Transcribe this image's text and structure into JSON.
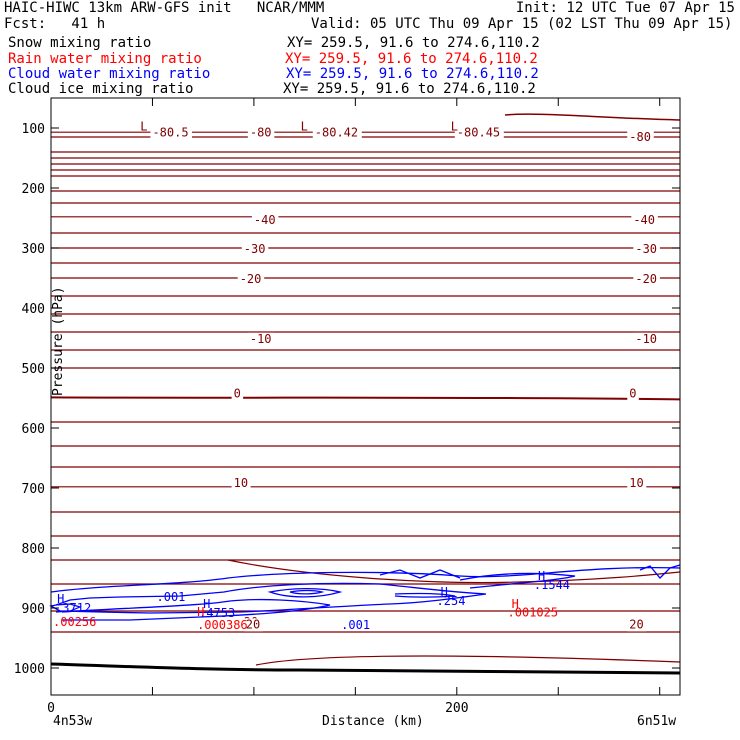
{
  "header": {
    "title": "HAIC-HIWC 13km ARW-GFS init   NCAR/MMM",
    "init": "Init: 12 UTC Tue 07 Apr 15",
    "fcst": "Fcst:   41 h",
    "valid": "Valid: 05 UTC Thu 09 Apr 15 (02 LST Thu 09 Apr 15)"
  },
  "legend": [
    {
      "label": "Snow mixing ratio",
      "xy": "XY= 259.5, 91.6 to 274.6,110.2",
      "color": "#000000"
    },
    {
      "label": "Rain water mixing ratio",
      "xy": "XY= 259.5, 91.6 to 274.6,110.2",
      "color": "#ff0000"
    },
    {
      "label": "Cloud water mixing ratio",
      "xy": "XY= 259.5, 91.6 to 274.6,110.2",
      "color": "#0000ff"
    },
    {
      "label": "Cloud ice mixing ratio",
      "xy": "XY= 259.5, 91.6 to 274.6,110.2",
      "color": "#000000"
    }
  ],
  "chart_data": {
    "type": "line",
    "title": "",
    "xlabel": "Distance (km)",
    "ylabel": "Pressure (hPa)",
    "xlim": [
      0,
      310
    ],
    "ylim": [
      1045,
      50
    ],
    "x_ticks": [
      "0",
      "200"
    ],
    "y_ticks": [
      "100",
      "200",
      "300",
      "400",
      "500",
      "600",
      "700",
      "800",
      "900",
      "1000"
    ],
    "x_end_labels": {
      "left": "4n53w",
      "right": "6n51w"
    },
    "colors": {
      "temperature": "#800000",
      "cloud_water": "#0000ff",
      "rain": "#ff0000",
      "terrain": "#000000"
    },
    "temperature_contours": [
      {
        "label": "-80.5",
        "x": 50,
        "p": 114
      },
      {
        "label": "-80",
        "x": 98,
        "p": 114
      },
      {
        "label": "-80.42",
        "x": 130,
        "p": 114
      },
      {
        "label": "-80.45",
        "x": 200,
        "p": 114
      },
      {
        "label": "-80",
        "x": 285,
        "p": 122
      },
      {
        "label": "-40",
        "x": 100,
        "p": 260
      },
      {
        "label": "-40",
        "x": 287,
        "p": 260
      },
      {
        "label": "-30",
        "x": 95,
        "p": 308
      },
      {
        "label": "-30",
        "x": 288,
        "p": 308
      },
      {
        "label": "-20",
        "x": 93,
        "p": 358
      },
      {
        "label": "-20",
        "x": 288,
        "p": 358
      },
      {
        "label": "-10",
        "x": 98,
        "p": 458
      },
      {
        "label": "-10",
        "x": 288,
        "p": 458
      },
      {
        "label": "0",
        "x": 90,
        "p": 549
      },
      {
        "label": "0",
        "x": 285,
        "p": 549
      },
      {
        "label": "10",
        "x": 90,
        "p": 698
      },
      {
        "label": "10",
        "x": 285,
        "p": 698
      },
      {
        "label": "20",
        "x": 95,
        "p": 930
      },
      {
        "label": "20",
        "x": 285,
        "p": 934
      }
    ],
    "low_markers": [
      {
        "label": "L",
        "x": 44,
        "p": 104
      },
      {
        "label": "L",
        "x": 123,
        "p": 104
      },
      {
        "label": "L",
        "x": 197,
        "p": 104
      }
    ],
    "cloud_water_labels": [
      {
        "label": "H",
        "x": 3,
        "p": 892
      },
      {
        "label": ".3712",
        "x": 2,
        "p": 907
      },
      {
        "label": ".001",
        "x": 52,
        "p": 888
      },
      {
        "label": "H",
        "x": 75,
        "p": 900
      },
      {
        "label": ".4753",
        "x": 73,
        "p": 915
      },
      {
        "label": ".001",
        "x": 143,
        "p": 935
      },
      {
        "label": "H",
        "x": 192,
        "p": 880
      },
      {
        "label": ".254",
        "x": 190,
        "p": 895
      },
      {
        "label": "H",
        "x": 240,
        "p": 853
      },
      {
        "label": ".1544",
        "x": 238,
        "p": 868
      }
    ],
    "rain_labels": [
      {
        "label": "H",
        "x": 72,
        "p": 913
      },
      {
        "label": ".000386",
        "x": 72,
        "p": 935
      },
      {
        "label": ".00256",
        "x": 1,
        "p": 930
      },
      {
        "label": "H",
        "x": 227,
        "p": 900
      },
      {
        "label": ".001025",
        "x": 225,
        "p": 914
      }
    ],
    "zero_rain_labels": [
      {
        "label": "20",
        "x": 96,
        "p": 934
      }
    ]
  }
}
